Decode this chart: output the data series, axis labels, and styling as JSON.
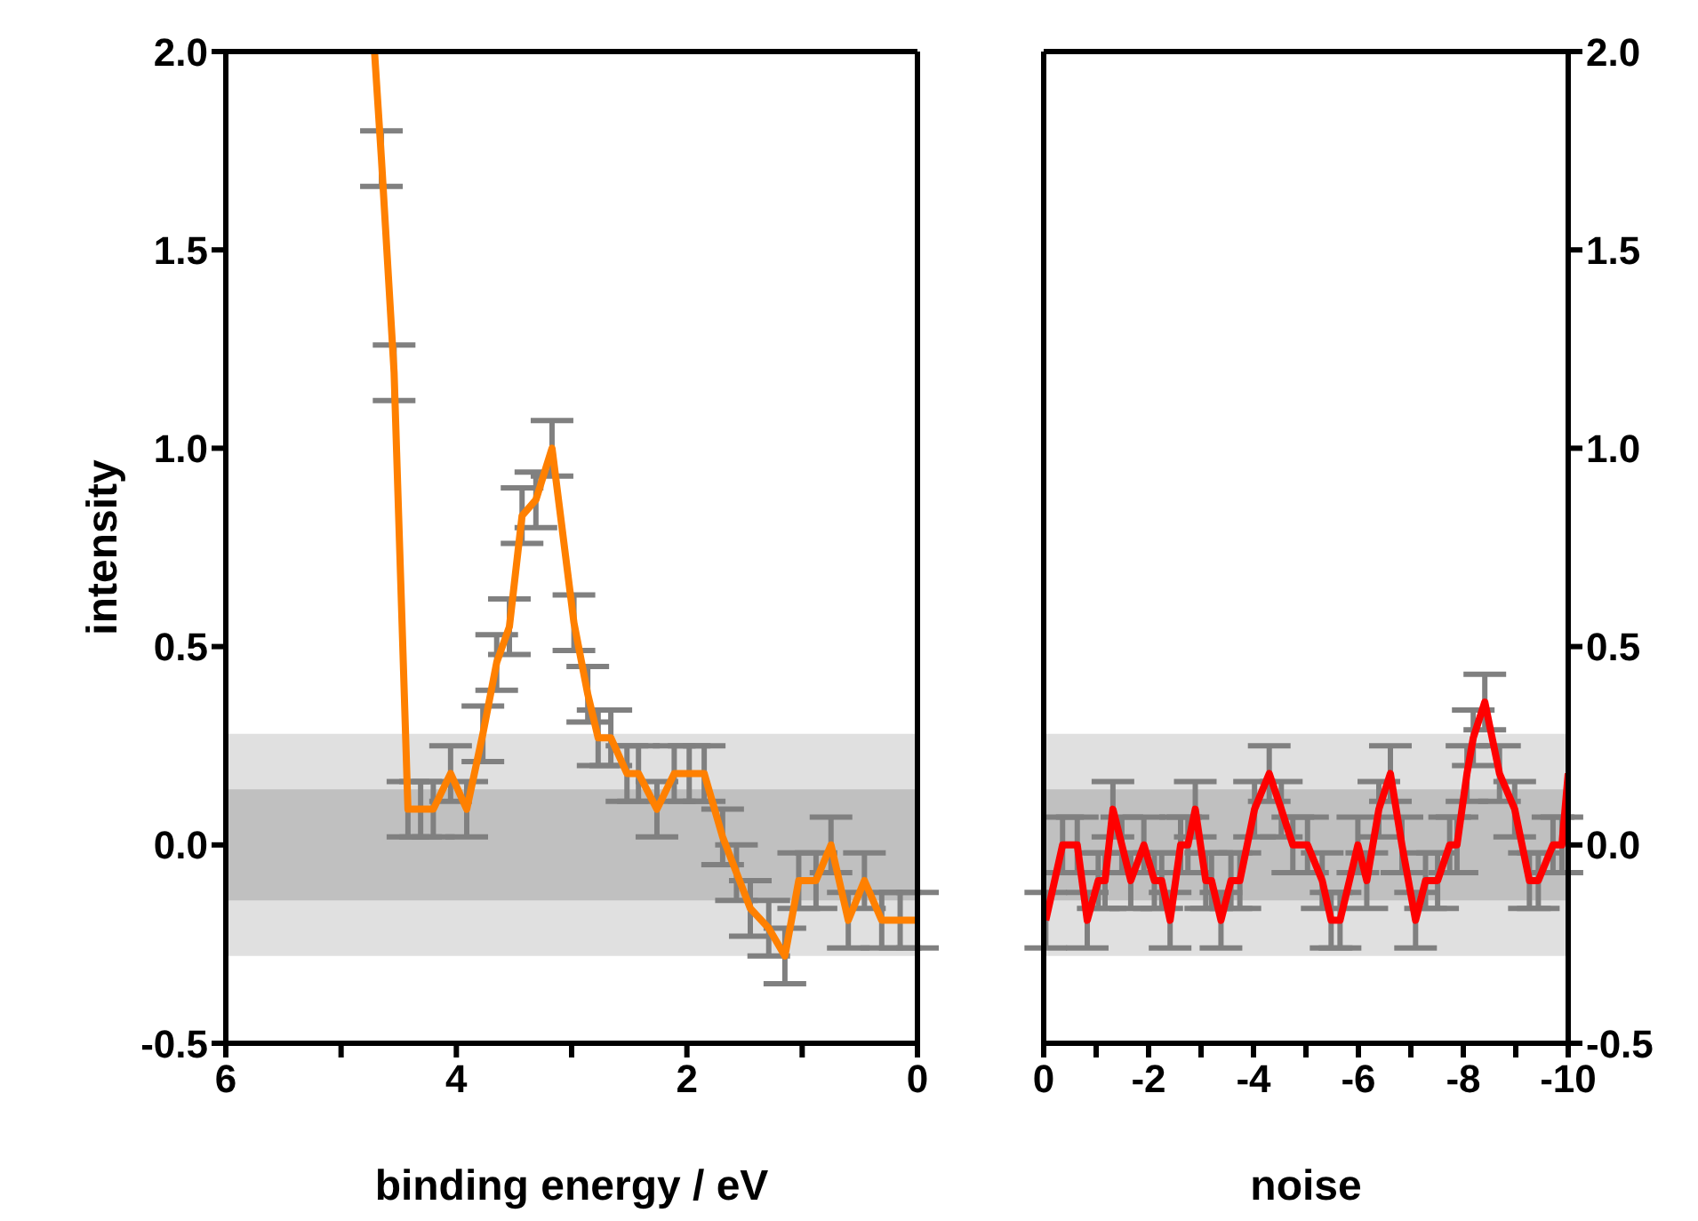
{
  "chart_data": [
    {
      "type": "line",
      "xlabel": "binding energy / eV",
      "ylabel": "intensity",
      "xlim": [
        6,
        0
      ],
      "xticks": [
        6,
        {
          "value": 5,
          "label": null
        },
        4,
        {
          "value": 3,
          "label": null
        },
        2,
        {
          "value": 1,
          "label": null
        },
        0
      ],
      "ylim": [
        -0.5,
        2.0
      ],
      "yticks": [
        {
          "value": -0.5,
          "label": "-0.5"
        },
        {
          "value": 0,
          "label": "0.0"
        },
        {
          "value": 0.5,
          "label": "0.5"
        },
        {
          "value": 1,
          "label": "1.0"
        },
        {
          "value": 1.5,
          "label": "1.5"
        },
        {
          "value": 2,
          "label": "2.0"
        }
      ],
      "bands": [
        {
          "axis": "y",
          "from": -0.28,
          "to": 0.28,
          "color": "#e0e0e0"
        },
        {
          "axis": "y",
          "from": -0.14,
          "to": 0.14,
          "color": "#c0c0c0"
        }
      ],
      "series": [
        {
          "color": "#ff8000",
          "x": [
            4.71,
            4.65,
            4.54,
            4.42,
            4.31,
            4.2,
            4.05,
            3.91,
            3.77,
            3.65,
            3.54,
            3.43,
            3.31,
            3.17,
            2.98,
            2.86,
            2.77,
            2.66,
            2.52,
            2.42,
            2.26,
            2.11,
            1.98,
            1.85,
            1.69,
            1.57,
            1.45,
            1.29,
            1.15,
            1.03,
            0.88,
            0.75,
            0.6,
            0.46,
            0.31,
            0.15,
            0.0
          ],
          "values": [
            2.0,
            1.73,
            1.19,
            0.09,
            0.09,
            0.09,
            0.18,
            0.09,
            0.28,
            0.46,
            0.55,
            0.83,
            0.87,
            1.0,
            0.56,
            0.38,
            0.27,
            0.27,
            0.18,
            0.18,
            0.09,
            0.18,
            0.18,
            0.18,
            0.02,
            -0.07,
            -0.16,
            -0.21,
            -0.28,
            -0.09,
            -0.09,
            0.0,
            -0.19,
            -0.09,
            -0.19,
            -0.19,
            -0.19
          ],
          "errors": [
            null,
            0.07,
            0.07,
            0.07,
            0.07,
            0.07,
            0.07,
            0.07,
            0.07,
            0.07,
            0.07,
            0.07,
            0.07,
            0.07,
            0.07,
            0.07,
            0.07,
            0.07,
            0.07,
            0.07,
            0.07,
            0.07,
            0.07,
            0.07,
            0.07,
            0.07,
            0.07,
            0.07,
            0.07,
            0.07,
            0.07,
            0.07,
            0.07,
            0.07,
            0.07,
            0.07,
            0.07
          ]
        }
      ]
    },
    {
      "type": "line",
      "xlabel": "noise",
      "xlim": [
        0,
        -10
      ],
      "xticks": [
        0,
        {
          "value": -1,
          "label": null
        },
        -2,
        {
          "value": -3,
          "label": null
        },
        -4,
        {
          "value": -5,
          "label": null
        },
        -6,
        {
          "value": -7,
          "label": null
        },
        -8,
        {
          "value": -9,
          "label": null
        },
        -10
      ],
      "ylim": [
        -0.5,
        2.0
      ],
      "yticks": [
        {
          "value": -0.5,
          "label": "-0.5"
        },
        {
          "value": 0,
          "label": "0.0"
        },
        {
          "value": 0.5,
          "label": "0.5"
        },
        {
          "value": 1,
          "label": "1.0"
        },
        {
          "value": 1.5,
          "label": "1.5"
        },
        {
          "value": 2,
          "label": "2.0"
        }
      ],
      "bands": [
        {
          "axis": "y",
          "from": -0.28,
          "to": 0.28,
          "color": "#e0e0e0"
        },
        {
          "axis": "y",
          "from": -0.14,
          "to": 0.14,
          "color": "#c0c0c0"
        }
      ],
      "series": [
        {
          "color": "#ff0000",
          "x": [
            -0.04,
            -0.36,
            -0.64,
            -0.83,
            -1.04,
            -1.17,
            -1.32,
            -1.49,
            -1.66,
            -1.91,
            -2.11,
            -2.25,
            -2.41,
            -2.61,
            -2.75,
            -2.89,
            -3.09,
            -3.2,
            -3.38,
            -3.57,
            -3.74,
            -4.02,
            -4.3,
            -4.53,
            -4.75,
            -5.03,
            -5.31,
            -5.48,
            -5.65,
            -5.99,
            -6.16,
            -6.39,
            -6.61,
            -6.83,
            -7.09,
            -7.28,
            -7.51,
            -7.74,
            -7.88,
            -8.07,
            -8.19,
            -8.41,
            -8.69,
            -8.98,
            -9.26,
            -9.43,
            -9.71,
            -9.88,
            -10.0
          ],
          "values": [
            -0.19,
            0.0,
            0.0,
            -0.19,
            -0.09,
            -0.09,
            0.09,
            0.0,
            -0.09,
            0.0,
            -0.09,
            -0.09,
            -0.19,
            0.0,
            0.0,
            0.09,
            -0.09,
            -0.09,
            -0.19,
            -0.09,
            -0.09,
            0.09,
            0.18,
            0.09,
            0.0,
            0.0,
            -0.09,
            -0.19,
            -0.19,
            0.0,
            -0.09,
            0.09,
            0.18,
            0.0,
            -0.19,
            -0.09,
            -0.09,
            0.0,
            0.0,
            0.18,
            0.27,
            0.36,
            0.18,
            0.09,
            -0.09,
            -0.09,
            0.0,
            0.0,
            0.18
          ],
          "errors": [
            0.07,
            0.07,
            0.07,
            0.07,
            0.07,
            0.07,
            0.07,
            0.07,
            0.07,
            0.07,
            0.07,
            0.07,
            0.07,
            0.07,
            0.07,
            0.07,
            0.07,
            0.07,
            0.07,
            0.07,
            0.07,
            0.07,
            0.07,
            0.07,
            0.07,
            0.07,
            0.07,
            0.07,
            0.07,
            0.07,
            0.07,
            0.07,
            0.07,
            0.07,
            0.07,
            0.07,
            0.07,
            0.07,
            0.07,
            0.07,
            0.07,
            0.07,
            0.07,
            0.07,
            0.07,
            0.07,
            0.07,
            0.07,
            null
          ]
        }
      ]
    }
  ]
}
